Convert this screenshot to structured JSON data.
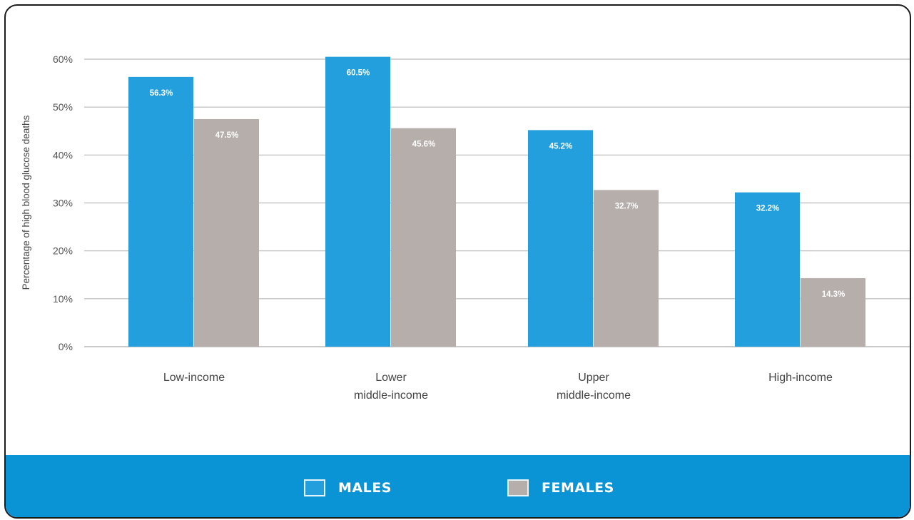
{
  "chart_data": {
    "type": "bar",
    "categories": [
      [
        "Low-income"
      ],
      [
        "Lower",
        "middle-income"
      ],
      [
        "Upper",
        "middle-income"
      ],
      [
        "High-income"
      ]
    ],
    "series": [
      {
        "name": "MALES",
        "color": "#229fdc",
        "values": [
          56.3,
          60.5,
          45.2,
          32.2
        ],
        "labels": [
          "56.3%",
          "60.5%",
          "45.2%",
          "32.2%"
        ]
      },
      {
        "name": "FEMALES",
        "color": "#b5aeaa",
        "values": [
          47.5,
          45.6,
          32.7,
          14.3
        ],
        "labels": [
          "47.5%",
          "45.6%",
          "32.7%",
          "14.3%"
        ]
      }
    ],
    "ylabel": "Percentage of high blood glucose deaths",
    "yticks": [
      "0%",
      "10%",
      "20%",
      "30%",
      "40%",
      "50%",
      "60%"
    ],
    "ylim": [
      0,
      60
    ],
    "grid": true,
    "legend_position": "bottom"
  },
  "legend": {
    "items": [
      {
        "label": "MALES",
        "swatch_color": "#229fdc"
      },
      {
        "label": "FEMALES",
        "swatch_color": "#b5aeaa"
      }
    ]
  },
  "colors": {
    "band": "#0a93d5",
    "gridline": "#b8b8b8"
  }
}
